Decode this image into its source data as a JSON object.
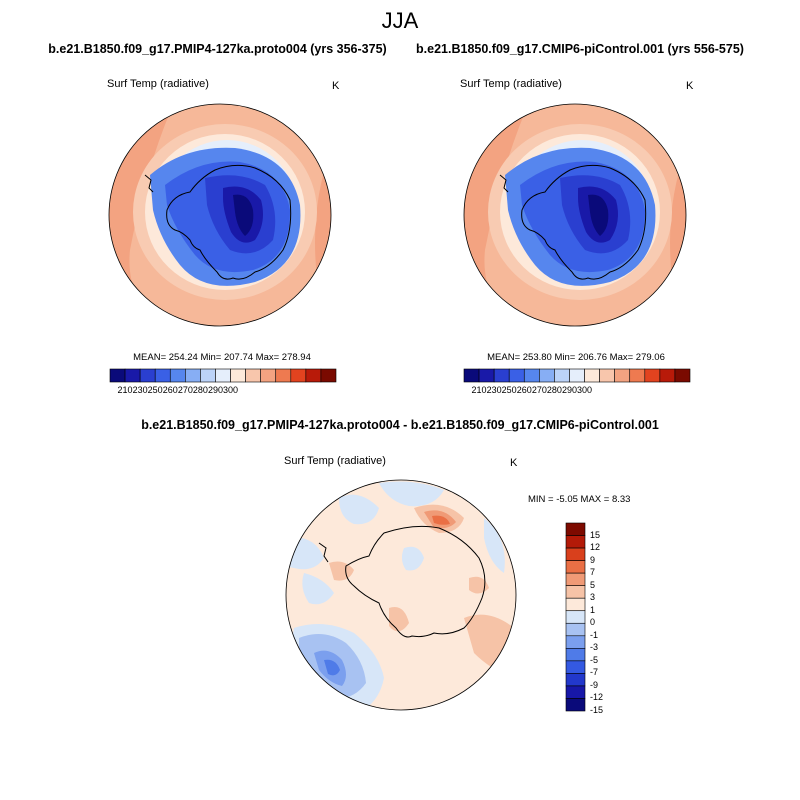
{
  "figure": {
    "title": "JJA",
    "colors": {
      "abs_scale": [
        "#0a0a7a",
        "#1919a8",
        "#2a3fd0",
        "#3a60e6",
        "#5686ee",
        "#87aef4",
        "#bcd3f8",
        "#e5eefb",
        "#fde9da",
        "#f8c6ac",
        "#f3a381",
        "#ee7a50",
        "#e2431f",
        "#b81a09",
        "#7a0a00"
      ],
      "diff_scale": [
        "#0a0a7a",
        "#1717a8",
        "#2238cc",
        "#3459e2",
        "#4f7be8",
        "#7b9fee",
        "#a8c2f2",
        "#d7e6f8",
        "#fde9da",
        "#f6c3a7",
        "#f09a76",
        "#ea6f45",
        "#d9401c",
        "#b31a08",
        "#7d0a00"
      ]
    },
    "panels": [
      {
        "case": "b.e21.B1850.f09_g17.PMIP4-127ka.proto004 (yrs 356-375)",
        "variable": "Surf Temp (radiative)",
        "units": "K",
        "stats": "MEAN= 254.24  Min= 207.74  Max= 278.94"
      },
      {
        "case": "b.e21.B1850.f09_g17.CMIP6-piControl.001 (yrs 556-575)",
        "variable": "Surf Temp (radiative)",
        "units": "K",
        "stats": "MEAN= 253.80  Min= 206.76  Max= 279.06"
      }
    ],
    "abs_colorbar": {
      "labels": [
        "210",
        "230",
        "250",
        "260",
        "270",
        "280",
        "290",
        "300"
      ]
    },
    "difference": {
      "title": "b.e21.B1850.f09_g17.PMIP4-127ka.proto004 - b.e21.B1850.f09_g17.CMIP6-piControl.001",
      "variable": "Surf Temp (radiative)",
      "units": "K",
      "stats": "MIN =  -5.05 MAX =   8.33",
      "colorbar_labels": [
        "15",
        "12",
        "9",
        "7",
        "5",
        "3",
        "1",
        "0",
        "-1",
        "-3",
        "-5",
        "-7",
        "-9",
        "-12",
        "-15"
      ]
    }
  }
}
